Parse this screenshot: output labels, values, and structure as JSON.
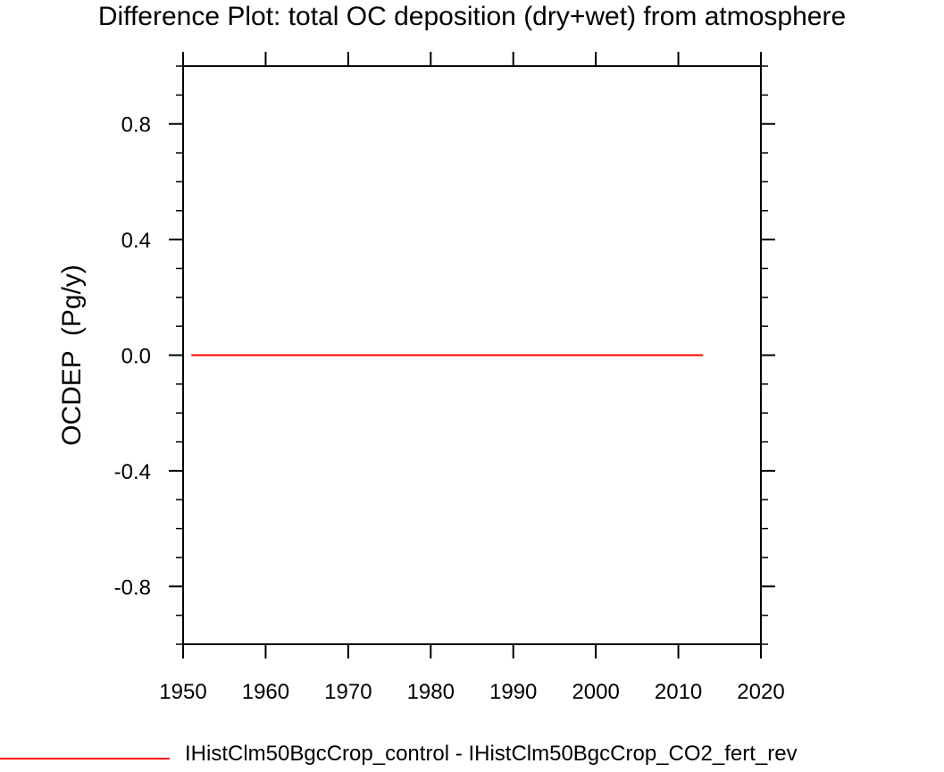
{
  "chart_data": {
    "type": "line",
    "title": "Difference Plot: total OC deposition (dry+wet) from atmosphere",
    "ylabel": "OCDEP  (Pg/y)",
    "xlabel": "",
    "xlim": [
      1950,
      2020
    ],
    "ylim": [
      -1.0,
      1.0
    ],
    "x_ticks": [
      1950,
      1960,
      1970,
      1980,
      1990,
      2000,
      2010,
      2020
    ],
    "y_ticks": [
      -0.8,
      -0.4,
      0.0,
      0.4,
      0.8
    ],
    "y_tick_labels": [
      "-0.8",
      "-0.4",
      "0.0",
      "0.4",
      "0.8"
    ],
    "grid": false,
    "legend_position": "bottom",
    "series": [
      {
        "name": "IHistClm50BgcCrop_control - IHistClm50BgcCrop_CO2_fert_rev",
        "color": "#ff0000",
        "x": [
          1951,
          2013
        ],
        "y": [
          0.0,
          0.0
        ]
      }
    ]
  }
}
